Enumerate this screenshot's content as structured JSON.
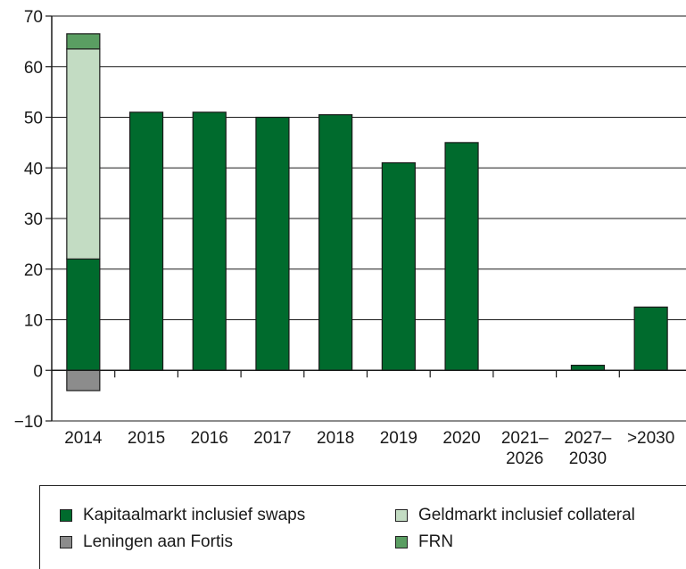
{
  "chart_data": {
    "type": "bar",
    "stacked": true,
    "categories": [
      "2014",
      "2015",
      "2016",
      "2017",
      "2018",
      "2019",
      "2020",
      "2021–2026",
      "2027–2030",
      ">2030"
    ],
    "category_lines": [
      [
        "2014"
      ],
      [
        "2015"
      ],
      [
        "2016"
      ],
      [
        "2017"
      ],
      [
        "2018"
      ],
      [
        "2019"
      ],
      [
        "2020"
      ],
      [
        "2021–",
        "2026"
      ],
      [
        "2027–",
        "2030"
      ],
      [
        ">2030"
      ]
    ],
    "series": [
      {
        "name": "Kapitaalmarkt inclusief swaps",
        "color": "#006b2d",
        "values": [
          22,
          51,
          51,
          50,
          50.5,
          41,
          45,
          0,
          1,
          12.5
        ]
      },
      {
        "name": "Leningen aan Fortis",
        "color": "#8c8c8c",
        "values": [
          -4,
          0,
          0,
          0,
          0,
          0,
          0,
          0,
          0,
          0
        ]
      },
      {
        "name": "Geldmarkt inclusief collateral",
        "color": "#c3dcc3",
        "values": [
          41.5,
          0,
          0,
          0,
          0,
          0,
          0,
          0,
          0,
          0
        ]
      },
      {
        "name": "FRN",
        "color": "#5a9e62",
        "values": [
          3,
          0,
          0,
          0,
          0,
          0,
          0,
          0,
          0,
          0
        ]
      }
    ],
    "yticks": [
      "70",
      "60",
      "50",
      "40",
      "30",
      "20",
      "10",
      "0",
      "−10"
    ],
    "ylim": [
      -10,
      70
    ],
    "grid": true,
    "legend_position": "bottom"
  }
}
